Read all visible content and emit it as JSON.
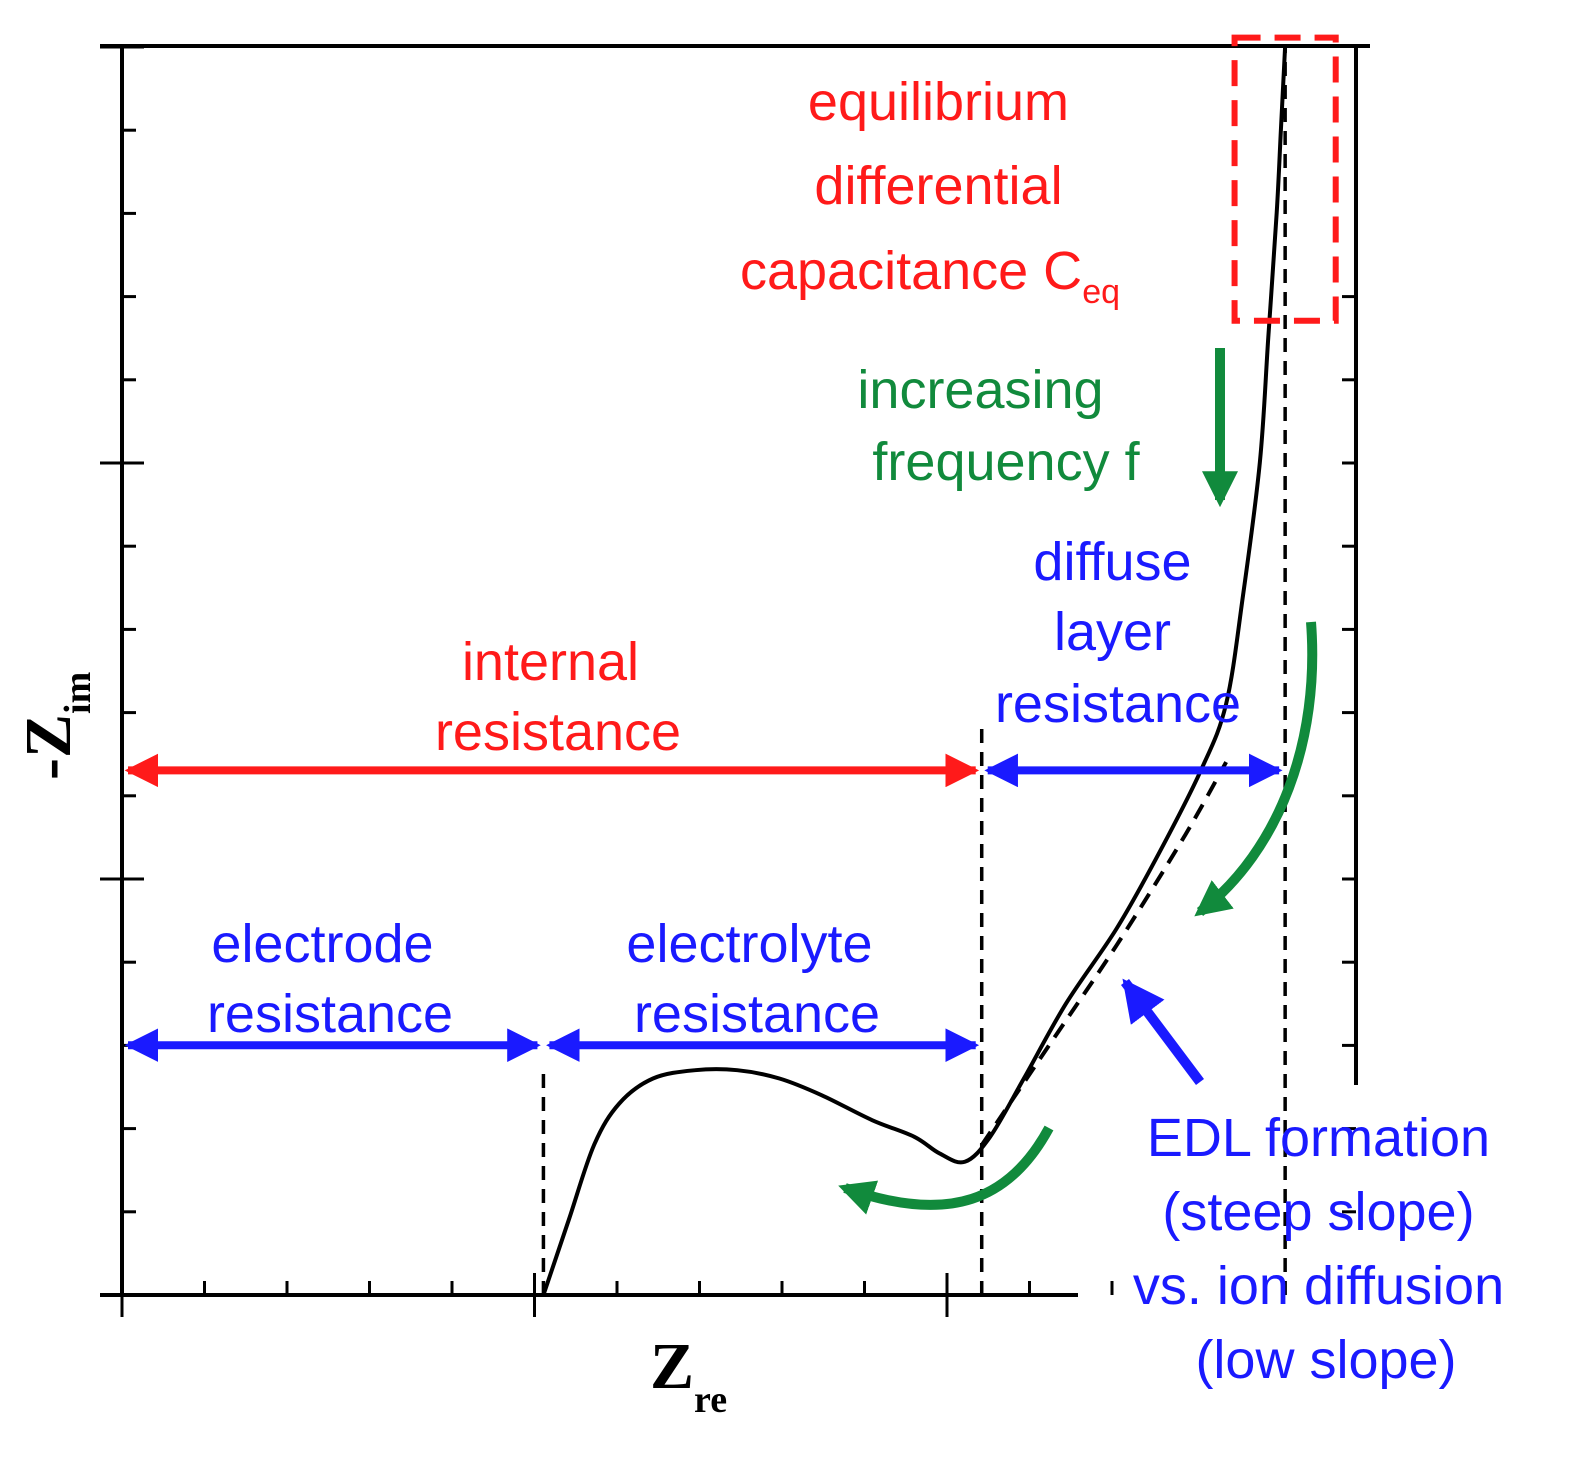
{
  "chart_data": {
    "type": "line",
    "title": "",
    "xlabel": {
      "main": "Z",
      "sub": "re"
    },
    "ylabel": {
      "prefix": "-",
      "main": "Z",
      "sub": "im"
    },
    "xlim": [
      0,
      14
    ],
    "ylim": [
      0,
      15
    ],
    "grid": false,
    "legend": "none",
    "series": [
      {
        "name": "",
        "color": "#000000",
        "style": "solid",
        "x": [
          5.0,
          5.3,
          5.6,
          5.9,
          6.3,
          6.8,
          7.3,
          7.8,
          8.3,
          8.9,
          9.4,
          9.7,
          10.0,
          10.3,
          10.7,
          11.2,
          11.8,
          12.3,
          12.8,
          13.1,
          13.3,
          13.5,
          13.6,
          13.7,
          13.75,
          13.8
        ],
        "y": [
          0,
          0.9,
          1.8,
          2.3,
          2.6,
          2.7,
          2.7,
          2.6,
          2.4,
          2.1,
          1.9,
          1.7,
          1.6,
          1.9,
          2.6,
          3.5,
          4.4,
          5.3,
          6.3,
          7.1,
          8.4,
          10.0,
          11.5,
          13.0,
          14.0,
          15.0
        ]
      },
      {
        "name": "",
        "color": "#000000",
        "style": "dashed",
        "x": [
          10.2,
          11.0,
          11.8,
          12.6,
          13.1
        ],
        "y": [
          1.8,
          3.0,
          4.2,
          5.5,
          6.4
        ]
      }
    ],
    "reference_lines": [
      {
        "axis": "x",
        "value": 5.0,
        "style": "dashed"
      },
      {
        "axis": "x",
        "value": 10.2,
        "y_from": 0,
        "y_to": 6.9,
        "style": "dashed"
      },
      {
        "axis": "x",
        "value": 13.8,
        "y_from": 0,
        "y_to": 15,
        "style": "dashed"
      }
    ],
    "annotations": {
      "red": [
        {
          "id": "ceq",
          "lines": [
            "equilibrium",
            "differential"
          ],
          "last": "capacitance C",
          "sub": "eq"
        },
        {
          "id": "internal",
          "lines": [
            "internal",
            "resistance"
          ]
        }
      ],
      "blue": [
        {
          "id": "diffuse",
          "lines": [
            "diffuse",
            "layer",
            "resistance"
          ]
        },
        {
          "id": "electrode",
          "lines": [
            "electrode",
            "resistance"
          ]
        },
        {
          "id": "electrolyte",
          "lines": [
            "electrolyte",
            "resistance"
          ]
        },
        {
          "id": "edl",
          "lines": [
            "EDL formation",
            "(steep slope)",
            "vs. ion diffusion",
            "(low slope)"
          ]
        }
      ],
      "green": [
        {
          "id": "freq",
          "lines": [
            "increasing",
            "frequency f"
          ]
        }
      ]
    },
    "spans": [
      {
        "id": "internal-span",
        "color": "#ff1a1a",
        "x_from": 0,
        "x_to": 10.2,
        "y": 6.3
      },
      {
        "id": "diffuse-span",
        "color": "#1a1aff",
        "x_from": 10.2,
        "x_to": 13.8,
        "y": 6.3
      },
      {
        "id": "electrode-span",
        "color": "#1a1aff",
        "x_from": 0,
        "x_to": 5.0,
        "y": 3.0
      },
      {
        "id": "electrolyte-span",
        "color": "#1a1aff",
        "x_from": 5.0,
        "x_to": 10.2,
        "y": 3.0
      }
    ],
    "highlight_box": {
      "color": "#ff1a1a",
      "x_from": 13.2,
      "x_to": 14.4,
      "y_from": 11.7,
      "y_to": 15.1
    }
  }
}
